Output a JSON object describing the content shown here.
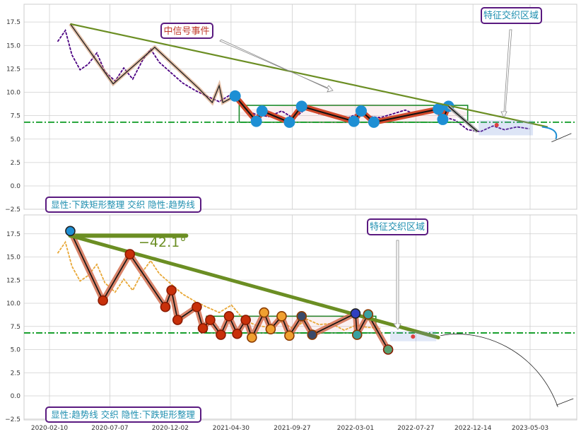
{
  "colors": {
    "grid": "#cfcfcf",
    "frame": "#cccccc",
    "trendline": "#6b8e23",
    "support_dash": "#0a9a20",
    "rect": "#1a8a2a",
    "price_top": "#4b0082",
    "price_bottom": "#e8a838",
    "zigzag_glow": "#d2492b",
    "pivot_top": "#1e8fd4",
    "pivot_bottom": "#c8300a",
    "label_border": "#5a1a80",
    "label_blue_text": "#1f8fb0",
    "label_red_text": "#c0392b"
  },
  "x_ticks": [
    "2020-02-10",
    "2020-07-07",
    "2020-12-02",
    "2021-04-30",
    "2021-09-27",
    "2022-03-01",
    "2022-07-27",
    "2022-12-14",
    "2023-05-03"
  ],
  "panels": [
    {
      "id": "top",
      "y_ticks": [
        "17.5",
        "15.0",
        "12.5",
        "10.0",
        "7.5",
        "5.0",
        "2.5",
        "0.0",
        "−2.5"
      ],
      "annotation_main": "中信号事件",
      "annotation_region": "特征交织区域",
      "caption": "显性:下跌矩形整理 交织 隐性:趋势线"
    },
    {
      "id": "bottom",
      "y_ticks": [
        "17.5",
        "15.0",
        "12.5",
        "10.0",
        "7.5",
        "5.0",
        "2.5",
        "0.0",
        "−2.5"
      ],
      "angle_label": "−42.1°",
      "annotation_region": "特征交织区域",
      "caption": "显性:趋势线 交织 隐性:下跌矩形整理"
    }
  ],
  "chart_data": [
    {
      "type": "line",
      "panel": "top",
      "ylim": [
        -2.5,
        19.0
      ],
      "x_ticks": [
        "2020-02-10",
        "2020-07-07",
        "2020-12-02",
        "2021-04-30",
        "2021-09-27",
        "2022-03-01",
        "2022-07-27",
        "2022-12-14",
        "2023-05-03"
      ],
      "y_ticks": [
        17.5,
        15.0,
        12.5,
        10.0,
        7.5,
        5.0,
        2.5,
        0.0,
        -2.5
      ],
      "price_series": [
        [
          "2020-03-01",
          15.4
        ],
        [
          "2020-03-20",
          16.6
        ],
        [
          "2020-04-05",
          14.0
        ],
        [
          "2020-04-25",
          12.4
        ],
        [
          "2020-05-15",
          13.0
        ],
        [
          "2020-06-05",
          14.2
        ],
        [
          "2020-06-25",
          12.2
        ],
        [
          "2020-07-20",
          11.2
        ],
        [
          "2020-08-10",
          12.6
        ],
        [
          "2020-09-01",
          11.4
        ],
        [
          "2020-09-25",
          13.4
        ],
        [
          "2020-10-15",
          14.6
        ],
        [
          "2020-11-05",
          13.2
        ],
        [
          "2020-12-01",
          12.2
        ],
        [
          "2021-01-01",
          11.0
        ],
        [
          "2021-02-01",
          10.2
        ],
        [
          "2021-03-01",
          9.6
        ],
        [
          "2021-04-01",
          9.0
        ],
        [
          "2021-05-01",
          9.8
        ],
        [
          "2021-06-01",
          8.2
        ],
        [
          "2021-07-01",
          7.6
        ],
        [
          "2021-08-01",
          7.4
        ],
        [
          "2021-09-01",
          8.0
        ],
        [
          "2021-10-01",
          7.2
        ],
        [
          "2021-11-01",
          8.3
        ],
        [
          "2021-12-01",
          7.7
        ],
        [
          "2022-01-01",
          7.8
        ],
        [
          "2022-02-01",
          7.1
        ],
        [
          "2022-03-01",
          7.6
        ],
        [
          "2022-04-01",
          7.4
        ],
        [
          "2022-05-01",
          7.3
        ],
        [
          "2022-06-01",
          7.7
        ],
        [
          "2022-07-01",
          8.1
        ],
        [
          "2022-08-01",
          7.5
        ],
        [
          "2022-09-01",
          8.2
        ],
        [
          "2022-10-01",
          7.4
        ],
        [
          "2022-11-01",
          7.0
        ],
        [
          "2022-12-01",
          6.0
        ],
        [
          "2023-01-01",
          5.8
        ],
        [
          "2023-02-01",
          6.4
        ],
        [
          "2023-03-01",
          6.0
        ],
        [
          "2023-04-01",
          6.3
        ],
        [
          "2023-05-01",
          6.1
        ]
      ],
      "zigzag_trend": [
        [
          "2020-04-01",
          17.3
        ],
        [
          "2020-07-15",
          10.9
        ],
        [
          "2020-10-25",
          14.8
        ],
        [
          "2021-02-10",
          10.4
        ],
        [
          "2021-03-15",
          8.9
        ],
        [
          "2021-04-01",
          10.7
        ],
        [
          "2021-04-10",
          8.9
        ],
        [
          "2021-05-10",
          9.6
        ]
      ],
      "zigzag_rect": [
        [
          "2021-05-10",
          9.6
        ],
        [
          "2021-07-01",
          6.9
        ],
        [
          "2021-07-15",
          8.0
        ],
        [
          "2021-09-20",
          6.8
        ],
        [
          "2021-10-20",
          8.5
        ],
        [
          "2022-02-25",
          6.9
        ],
        [
          "2022-03-15",
          8.0
        ],
        [
          "2022-04-15",
          6.8
        ],
        [
          "2022-09-20",
          8.2
        ],
        [
          "2022-10-01",
          7.1
        ],
        [
          "2022-10-15",
          8.5
        ]
      ],
      "trendline": [
        [
          "2020-04-01",
          17.3
        ],
        [
          "2023-06-15",
          6.3
        ]
      ],
      "support_line": 6.8,
      "rectangle": {
        "x0": "2021-05-20",
        "x1": "2022-12-01",
        "y0": 6.8,
        "y1": 8.6
      },
      "forecast_arc": [
        [
          "2023-06-01",
          6.3
        ],
        [
          "2023-07-05",
          5.0
        ]
      ]
    },
    {
      "type": "line",
      "panel": "bottom",
      "ylim": [
        -2.5,
        19.0
      ],
      "x_ticks": [
        "2020-02-10",
        "2020-07-07",
        "2020-12-02",
        "2021-04-30",
        "2021-09-27",
        "2022-03-01",
        "2022-07-27",
        "2022-12-14",
        "2023-05-03"
      ],
      "y_ticks": [
        17.5,
        15.0,
        12.5,
        10.0,
        7.5,
        5.0,
        2.5,
        0.0,
        -2.5
      ],
      "price_series": [
        [
          "2020-03-01",
          15.4
        ],
        [
          "2020-03-20",
          16.6
        ],
        [
          "2020-04-05",
          14.0
        ],
        [
          "2020-04-25",
          12.4
        ],
        [
          "2020-05-15",
          13.0
        ],
        [
          "2020-06-05",
          14.2
        ],
        [
          "2020-06-25",
          12.2
        ],
        [
          "2020-07-20",
          11.2
        ],
        [
          "2020-08-10",
          12.6
        ],
        [
          "2020-09-01",
          11.4
        ],
        [
          "2020-09-25",
          13.4
        ],
        [
          "2020-10-15",
          14.6
        ],
        [
          "2020-11-05",
          13.2
        ],
        [
          "2020-12-01",
          12.2
        ],
        [
          "2021-01-01",
          11.0
        ],
        [
          "2021-02-01",
          10.2
        ],
        [
          "2021-03-01",
          9.6
        ],
        [
          "2021-04-01",
          9.0
        ],
        [
          "2021-05-01",
          9.8
        ],
        [
          "2021-06-01",
          8.2
        ],
        [
          "2021-07-01",
          7.6
        ],
        [
          "2021-08-01",
          7.4
        ],
        [
          "2021-09-01",
          8.0
        ],
        [
          "2021-10-01",
          7.2
        ],
        [
          "2021-11-01",
          8.3
        ],
        [
          "2021-12-01",
          7.7
        ],
        [
          "2022-01-01",
          7.8
        ],
        [
          "2022-02-01",
          7.1
        ],
        [
          "2022-03-01",
          7.6
        ],
        [
          "2022-04-01",
          7.4
        ],
        [
          "2022-05-01",
          7.3
        ]
      ],
      "zigzag": [
        [
          "2020-04-01",
          17.8
        ],
        [
          "2020-06-20",
          10.3
        ],
        [
          "2020-08-25",
          15.3
        ],
        [
          "2020-11-20",
          9.6
        ],
        [
          "2020-12-05",
          11.4
        ],
        [
          "2020-12-20",
          8.2
        ],
        [
          "2021-02-05",
          9.6
        ],
        [
          "2021-02-20",
          7.3
        ],
        [
          "2021-03-10",
          8.2
        ],
        [
          "2021-04-05",
          6.6
        ],
        [
          "2021-04-25",
          8.6
        ],
        [
          "2021-05-15",
          6.7
        ],
        [
          "2021-06-05",
          8.2
        ],
        [
          "2021-06-20",
          6.3
        ],
        [
          "2021-07-20",
          9.0
        ],
        [
          "2021-08-05",
          7.2
        ],
        [
          "2021-09-01",
          8.6
        ],
        [
          "2021-09-20",
          6.5
        ],
        [
          "2021-10-20",
          8.6
        ],
        [
          "2021-11-15",
          6.6
        ],
        [
          "2022-03-01",
          8.9
        ],
        [
          "2022-03-05",
          6.6
        ],
        [
          "2022-04-01",
          8.8
        ],
        [
          "2022-05-20",
          5.0
        ]
      ],
      "trendline": [
        [
          "2020-04-01",
          17.3
        ],
        [
          "2022-09-20",
          6.3
        ]
      ],
      "angle_reference": [
        [
          "2020-04-01",
          17.3
        ],
        [
          "2021-01-10",
          17.3
        ]
      ],
      "support_line": 6.8,
      "rectangle": {
        "x0": "2021-03-01",
        "x1": "2022-04-20",
        "y0": 6.8,
        "y1": 8.6
      },
      "forecast_arc": [
        [
          "2022-09-25",
          6.5
        ],
        [
          "2023-07-10",
          -1.2
        ]
      ]
    }
  ]
}
